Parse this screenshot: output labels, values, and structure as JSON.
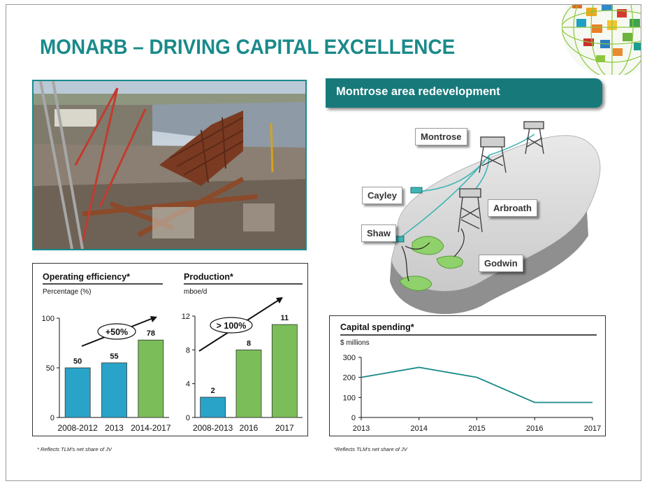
{
  "title": "MONARB – DRIVING CAPITAL EXCELLENCE",
  "colors": {
    "teal": "#1a8a8a",
    "banner": "#17797a",
    "bar_blue": "#2aa3c9",
    "bar_green": "#7bbd59",
    "line": "#1a8a8a"
  },
  "photo": {
    "icon": "construction-site-photo"
  },
  "operating_efficiency": {
    "title": "Operating efficiency*",
    "unit": "Percentage (%)",
    "badge": "+50%",
    "chart_data": {
      "type": "bar",
      "categories": [
        "2008-2012",
        "2013",
        "2014-2017"
      ],
      "values": [
        50,
        55,
        78
      ],
      "data_labels": [
        "50",
        "55",
        "78"
      ],
      "bar_colors": [
        "blue",
        "blue",
        "green"
      ],
      "ylim": [
        0,
        100
      ],
      "yticks": [
        0,
        50,
        100
      ],
      "ytick_labels": [
        "0",
        "50",
        "100"
      ]
    }
  },
  "production": {
    "title": "Production*",
    "unit": "mboe/d",
    "badge": "> 100%",
    "chart_data": {
      "type": "bar",
      "categories": [
        "2008-2013",
        "2016",
        "2017"
      ],
      "values": [
        2.4,
        8,
        11
      ],
      "data_labels": [
        "2",
        "8",
        "11"
      ],
      "bar_colors": [
        "blue",
        "green",
        "green"
      ],
      "ylim": [
        0,
        12
      ],
      "yticks": [
        0,
        4,
        8,
        12
      ],
      "ytick_labels": [
        "0",
        "4",
        "8",
        "12"
      ]
    }
  },
  "footnote_left": "* Reflects TLM's net share of JV",
  "montrose": {
    "banner": "Montrose area redevelopment",
    "labels": {
      "montrose": "Montrose",
      "cayley": "Cayley",
      "arbroath": "Arbroath",
      "shaw": "Shaw",
      "godwin": "Godwin"
    }
  },
  "capital_spending": {
    "title": "Capital spending*",
    "unit": "$ millions",
    "chart_data": {
      "type": "line",
      "x": [
        "2013",
        "2014",
        "2015",
        "2016",
        "2017"
      ],
      "values": [
        200,
        250,
        200,
        75,
        75
      ],
      "ylim": [
        0,
        300
      ],
      "yticks": [
        0,
        100,
        200,
        300
      ],
      "ytick_labels": [
        "0",
        "100",
        "200",
        "300"
      ]
    }
  },
  "footnote_right": "*Reflects TLM's net share of JV"
}
